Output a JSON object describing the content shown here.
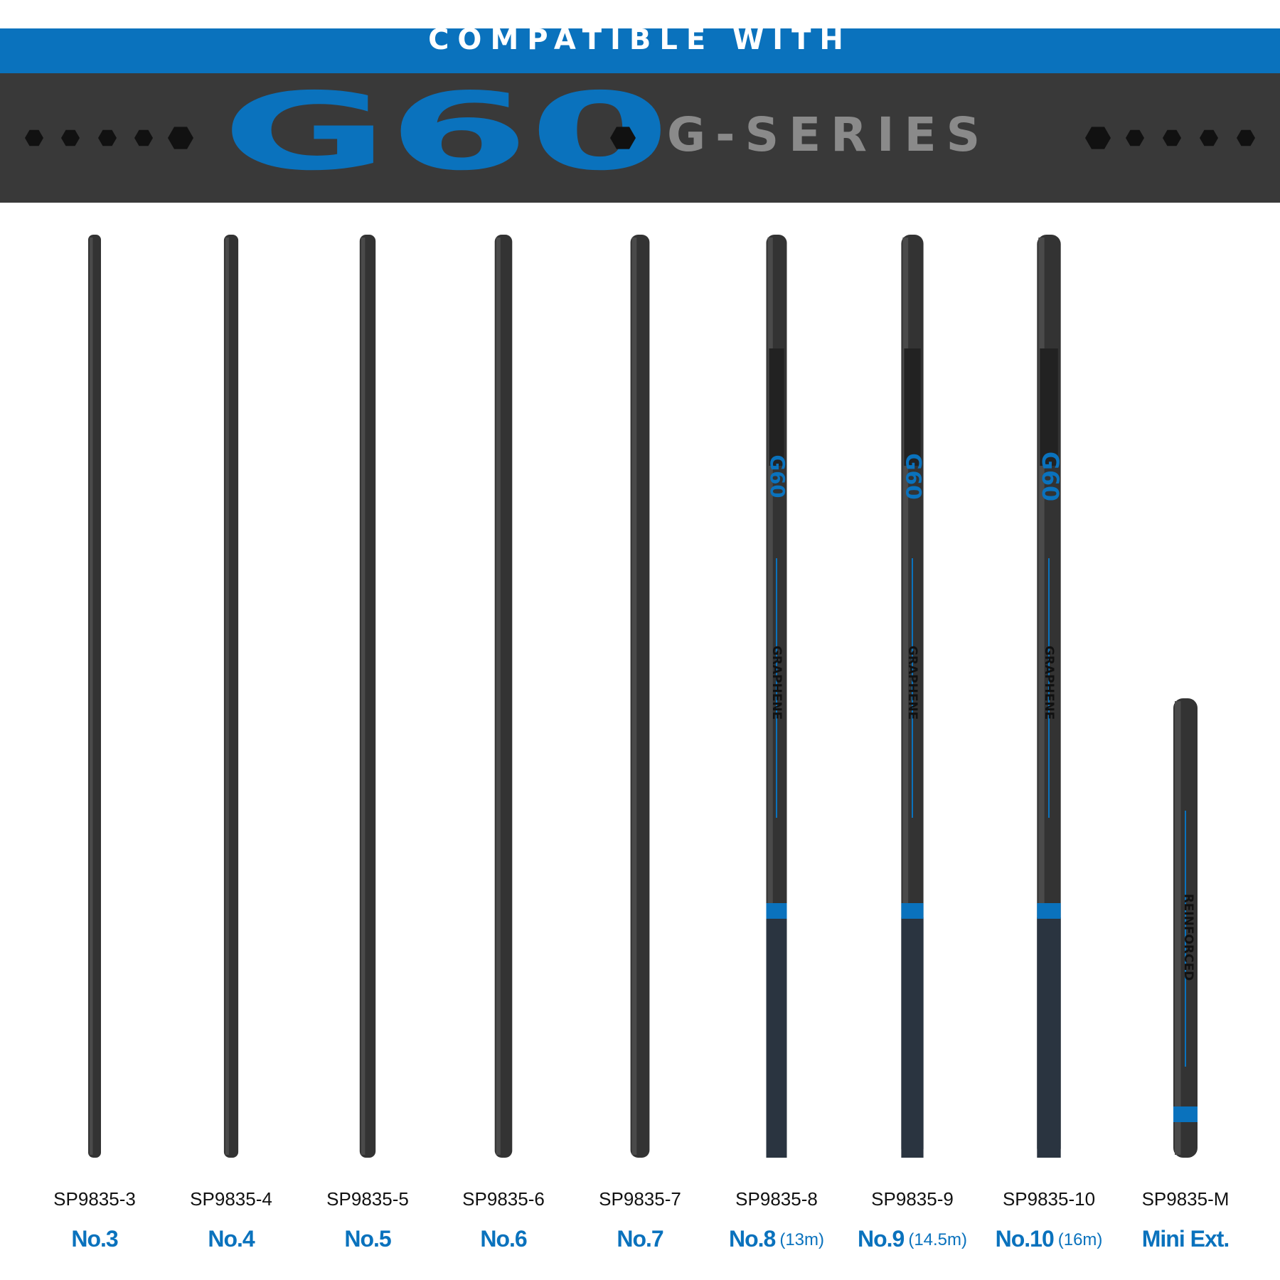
{
  "header": {
    "tagline": "COMPATIBLE WITH",
    "brand": "G60",
    "series": "G-SERIES"
  },
  "sections": [
    {
      "code": "SP9835-3",
      "name": "No.3"
    },
    {
      "code": "SP9835-4",
      "name": "No.4"
    },
    {
      "code": "SP9835-5",
      "name": "No.5"
    },
    {
      "code": "SP9835-6",
      "name": "No.6"
    },
    {
      "code": "SP9835-7",
      "name": "No.7"
    },
    {
      "code": "SP9835-8",
      "name": "No.8",
      "length": "(13m)",
      "pole_text": [
        "G60",
        "GRAPHENE"
      ]
    },
    {
      "code": "SP9835-9",
      "name": "No.9",
      "length": "(14.5m)",
      "pole_text": [
        "G60",
        "GRAPHENE"
      ]
    },
    {
      "code": "SP9835-10",
      "name": "No.10",
      "length": "(16m)",
      "pole_text": [
        "G60",
        "GRAPHENE"
      ]
    },
    {
      "code": "SP9835-M",
      "name": "Mini Ext.",
      "pole_text": [
        "REINFORCED"
      ]
    }
  ]
}
